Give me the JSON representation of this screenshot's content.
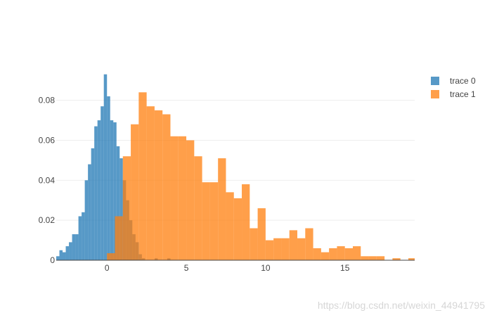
{
  "chart_data": {
    "type": "bar",
    "barmode": "overlay",
    "grid": true,
    "legend_position": "top-right",
    "xlim": [
      -3.2,
      19.4
    ],
    "ylim": [
      0,
      0.095
    ],
    "x_ticks": [
      0,
      5,
      10,
      15
    ],
    "y_ticks": [
      0,
      0.02,
      0.04,
      0.06,
      0.08
    ],
    "y_tick_labels": [
      "0",
      "0.02",
      "0.04",
      "0.06",
      "0.08"
    ],
    "series": [
      {
        "name": "trace 0",
        "color": "#1f77b4",
        "opacity": 0.75,
        "bin_width": 0.2,
        "bins": [
          [
            -3.2,
            0.002
          ],
          [
            -3.0,
            0.005
          ],
          [
            -2.8,
            0.004
          ],
          [
            -2.6,
            0.007
          ],
          [
            -2.4,
            0.009
          ],
          [
            -2.2,
            0.013
          ],
          [
            -2.0,
            0.013
          ],
          [
            -1.8,
            0.022
          ],
          [
            -1.6,
            0.024
          ],
          [
            -1.4,
            0.04
          ],
          [
            -1.2,
            0.048
          ],
          [
            -1.0,
            0.056
          ],
          [
            -0.8,
            0.067
          ],
          [
            -0.6,
            0.07
          ],
          [
            -0.4,
            0.077
          ],
          [
            -0.2,
            0.093
          ],
          [
            0.0,
            0.082
          ],
          [
            0.2,
            0.07
          ],
          [
            0.4,
            0.069
          ],
          [
            0.6,
            0.057
          ],
          [
            0.8,
            0.051
          ],
          [
            1.0,
            0.04
          ],
          [
            1.2,
            0.03
          ],
          [
            1.4,
            0.02
          ],
          [
            1.6,
            0.013
          ],
          [
            1.8,
            0.009
          ],
          [
            2.0,
            0.003
          ],
          [
            2.2,
            0.001
          ],
          [
            3.0,
            0.001
          ],
          [
            3.8,
            0.001
          ]
        ]
      },
      {
        "name": "trace 1",
        "color": "#ff7f0e",
        "opacity": 0.75,
        "bin_width": 0.5,
        "bins": [
          [
            0.0,
            0.0035
          ],
          [
            0.5,
            0.022
          ],
          [
            1.0,
            0.052
          ],
          [
            1.5,
            0.068
          ],
          [
            2.0,
            0.084
          ],
          [
            2.5,
            0.077
          ],
          [
            3.0,
            0.075
          ],
          [
            3.5,
            0.073
          ],
          [
            4.0,
            0.062
          ],
          [
            4.5,
            0.062
          ],
          [
            5.0,
            0.06
          ],
          [
            5.5,
            0.052
          ],
          [
            6.0,
            0.039
          ],
          [
            6.5,
            0.039
          ],
          [
            7.0,
            0.051
          ],
          [
            7.5,
            0.034
          ],
          [
            8.0,
            0.031
          ],
          [
            8.5,
            0.038
          ],
          [
            9.0,
            0.016
          ],
          [
            9.5,
            0.026
          ],
          [
            10.0,
            0.01
          ],
          [
            10.5,
            0.011
          ],
          [
            11.0,
            0.011
          ],
          [
            11.5,
            0.015
          ],
          [
            12.0,
            0.011
          ],
          [
            12.5,
            0.016
          ],
          [
            13.0,
            0.006
          ],
          [
            13.5,
            0.004
          ],
          [
            14.0,
            0.006
          ],
          [
            14.5,
            0.007
          ],
          [
            15.0,
            0.006
          ],
          [
            15.5,
            0.007
          ],
          [
            16.0,
            0.002
          ],
          [
            16.5,
            0.002
          ],
          [
            17.0,
            0.002
          ],
          [
            18.0,
            0.001
          ],
          [
            19.0,
            0.001
          ]
        ]
      }
    ]
  },
  "watermark": "https://blog.csdn.net/weixin_44941795"
}
